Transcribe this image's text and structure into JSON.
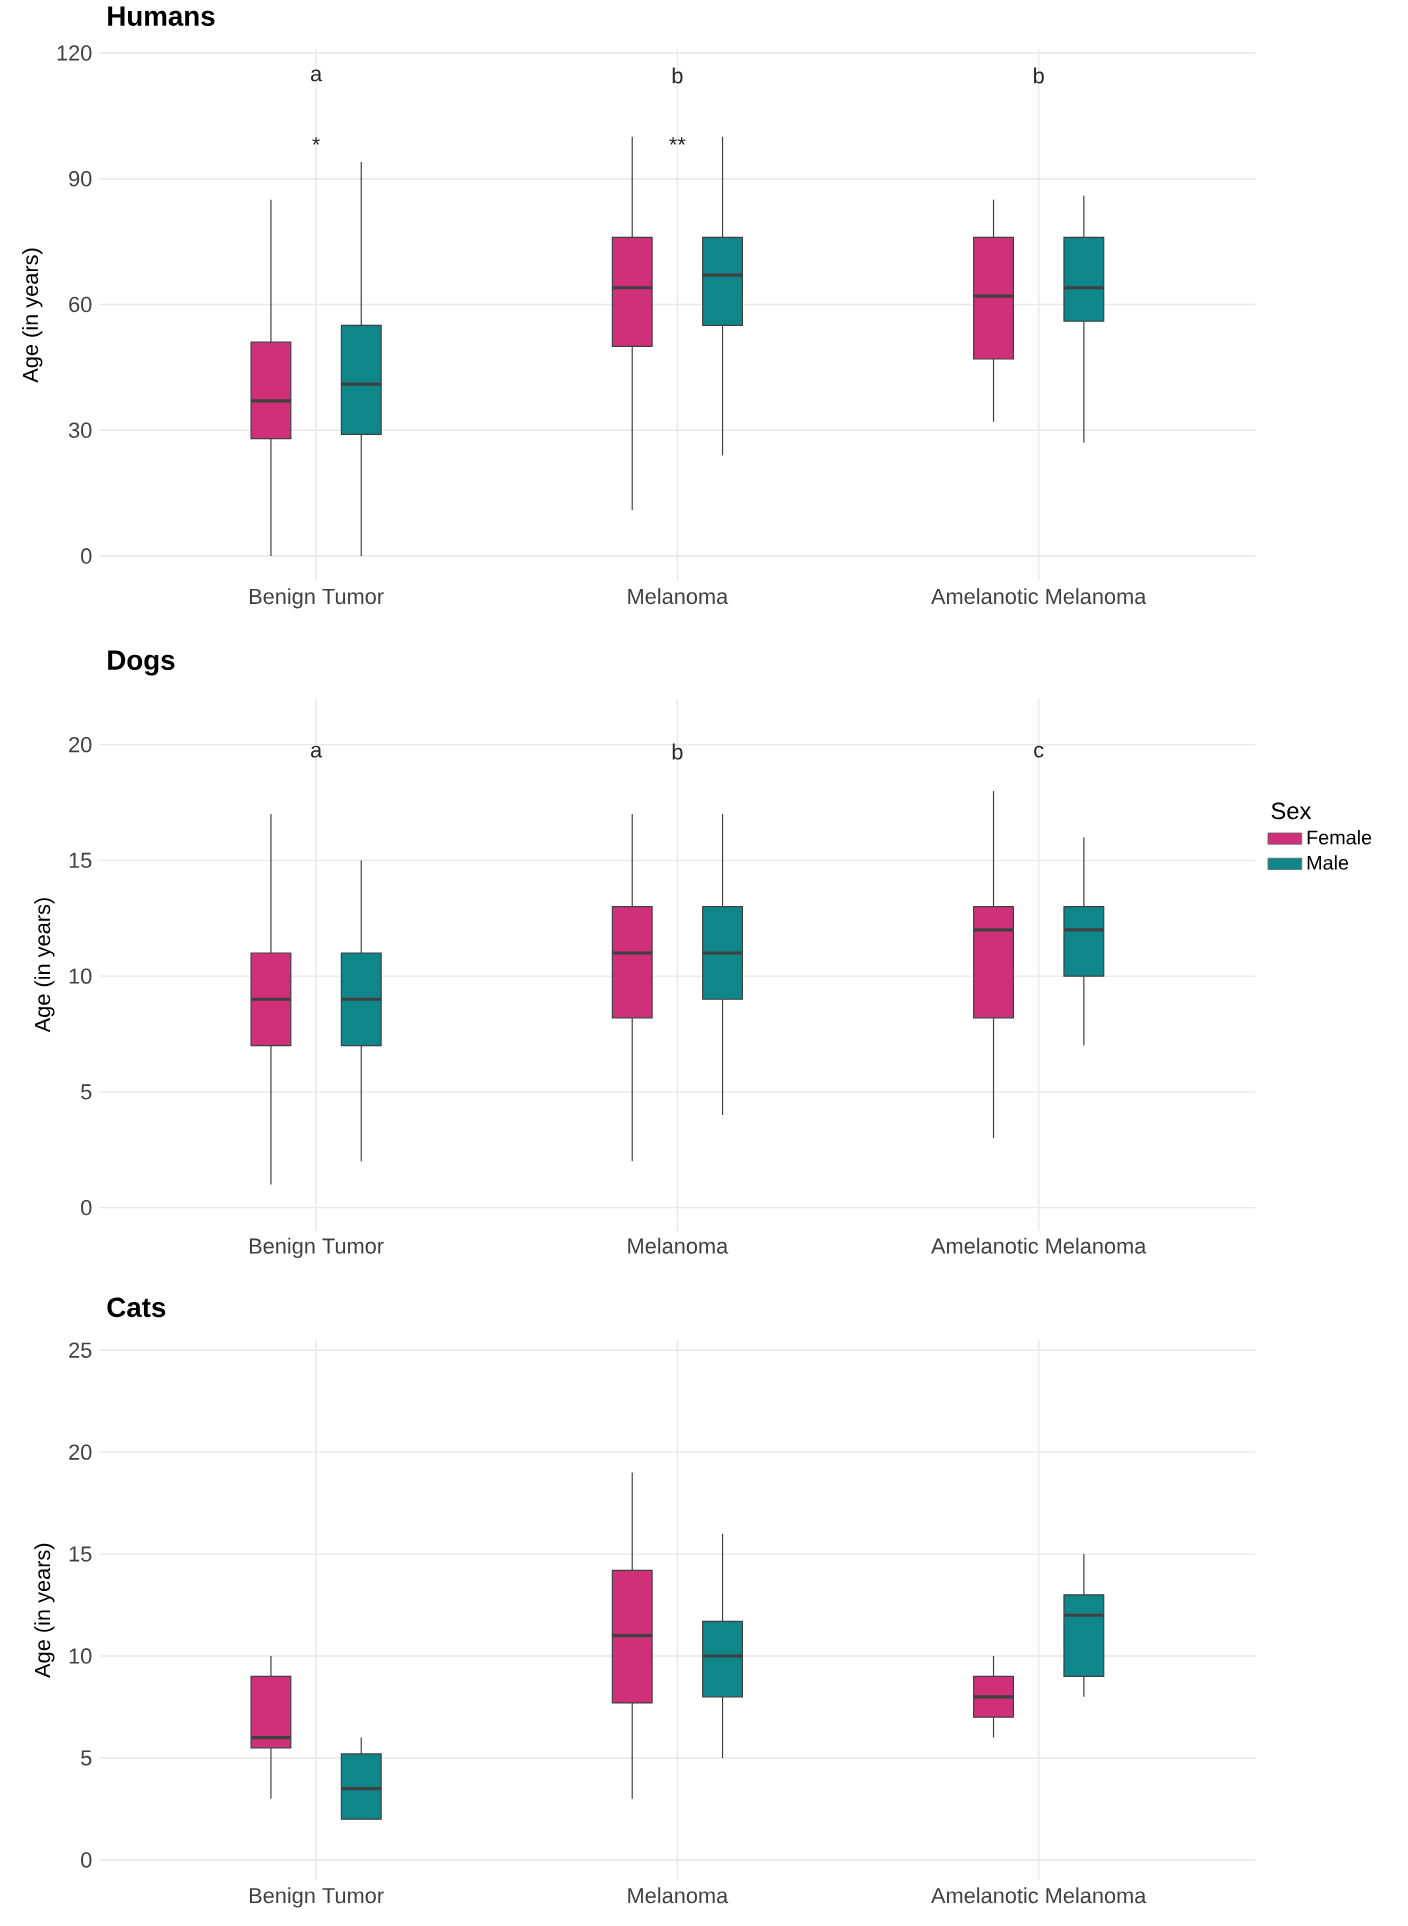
{
  "chart_data": [
    {
      "type": "box",
      "title": "Humans",
      "ylabel": "Age (in years)",
      "categories": [
        "Benign Tumor",
        "Melanoma",
        "Amelanotic Melanoma"
      ],
      "ylim": [
        -6,
        121
      ],
      "yticks": [
        0,
        30,
        60,
        90,
        120
      ],
      "grid": true,
      "series": [
        {
          "color": "#d0307a",
          "boxes": [
            {
              "low": 0,
              "q1": 28,
              "median": 37,
              "q3": 51,
              "high": 85
            },
            {
              "low": 11,
              "q1": 50,
              "median": 64,
              "q3": 76,
              "high": 100
            },
            {
              "low": 32,
              "q1": 47,
              "median": 62,
              "q3": 76,
              "high": 85
            }
          ]
        },
        {
          "color": "#0f878a",
          "boxes": [
            {
              "low": 0,
              "q1": 29,
              "median": 41,
              "q3": 55,
              "high": 94
            },
            {
              "low": 24,
              "q1": 55,
              "median": 67,
              "q3": 76,
              "high": 100
            },
            {
              "low": 27,
              "q1": 56,
              "median": 64,
              "q3": 76,
              "high": 86
            }
          ]
        }
      ],
      "annotations": [
        "a",
        "*",
        "b",
        "**",
        "b"
      ]
    },
    {
      "type": "box",
      "title": "Dogs",
      "ylabel": "Age (in years)",
      "categories": [
        "Benign Tumor",
        "Melanoma",
        "Amelanotic Melanoma"
      ],
      "ylim": [
        -1,
        22
      ],
      "yticks": [
        0,
        5,
        10,
        15,
        20
      ],
      "grid": true,
      "legend": "right",
      "legend_title": "Sex",
      "series": [
        {
          "name": "Female",
          "color": "#d0307a",
          "boxes": [
            {
              "low": 1,
              "q1": 7,
              "median": 9,
              "q3": 11,
              "high": 17
            },
            {
              "low": 2,
              "q1": 8.2,
              "median": 11,
              "q3": 13,
              "high": 17
            },
            {
              "low": 3,
              "q1": 8.2,
              "median": 12,
              "q3": 13,
              "high": 18
            }
          ]
        },
        {
          "name": "Male",
          "color": "#0f878a",
          "boxes": [
            {
              "low": 2,
              "q1": 7,
              "median": 9,
              "q3": 11,
              "high": 15
            },
            {
              "low": 4,
              "q1": 9,
              "median": 11,
              "q3": 13,
              "high": 17
            },
            {
              "low": 7,
              "q1": 10,
              "median": 12,
              "q3": 13,
              "high": 16
            }
          ]
        }
      ],
      "annotations": [
        "a",
        "b",
        "c"
      ]
    },
    {
      "type": "box",
      "title": "Cats",
      "ylabel": "Age (in years)",
      "categories": [
        "Benign Tumor",
        "Melanoma",
        "Amelanotic Melanoma"
      ],
      "ylim": [
        -1,
        25.5
      ],
      "yticks": [
        0,
        5,
        10,
        15,
        20,
        25
      ],
      "grid": true,
      "series": [
        {
          "color": "#d0307a",
          "boxes": [
            {
              "low": 3,
              "q1": 5.5,
              "median": 6,
              "q3": 9,
              "high": 10
            },
            {
              "low": 3,
              "q1": 7.7,
              "median": 11,
              "q3": 14.2,
              "high": 19
            },
            {
              "low": 6,
              "q1": 7,
              "median": 8,
              "q3": 9,
              "high": 10
            }
          ]
        },
        {
          "color": "#0f878a",
          "boxes": [
            {
              "low": 2,
              "q1": 2,
              "median": 3.5,
              "q3": 5.2,
              "high": 6
            },
            {
              "low": 5,
              "q1": 8,
              "median": 10,
              "q3": 11.7,
              "high": 16
            },
            {
              "low": 8,
              "q1": 9,
              "median": 12,
              "q3": 13,
              "high": 15
            }
          ]
        }
      ]
    }
  ]
}
